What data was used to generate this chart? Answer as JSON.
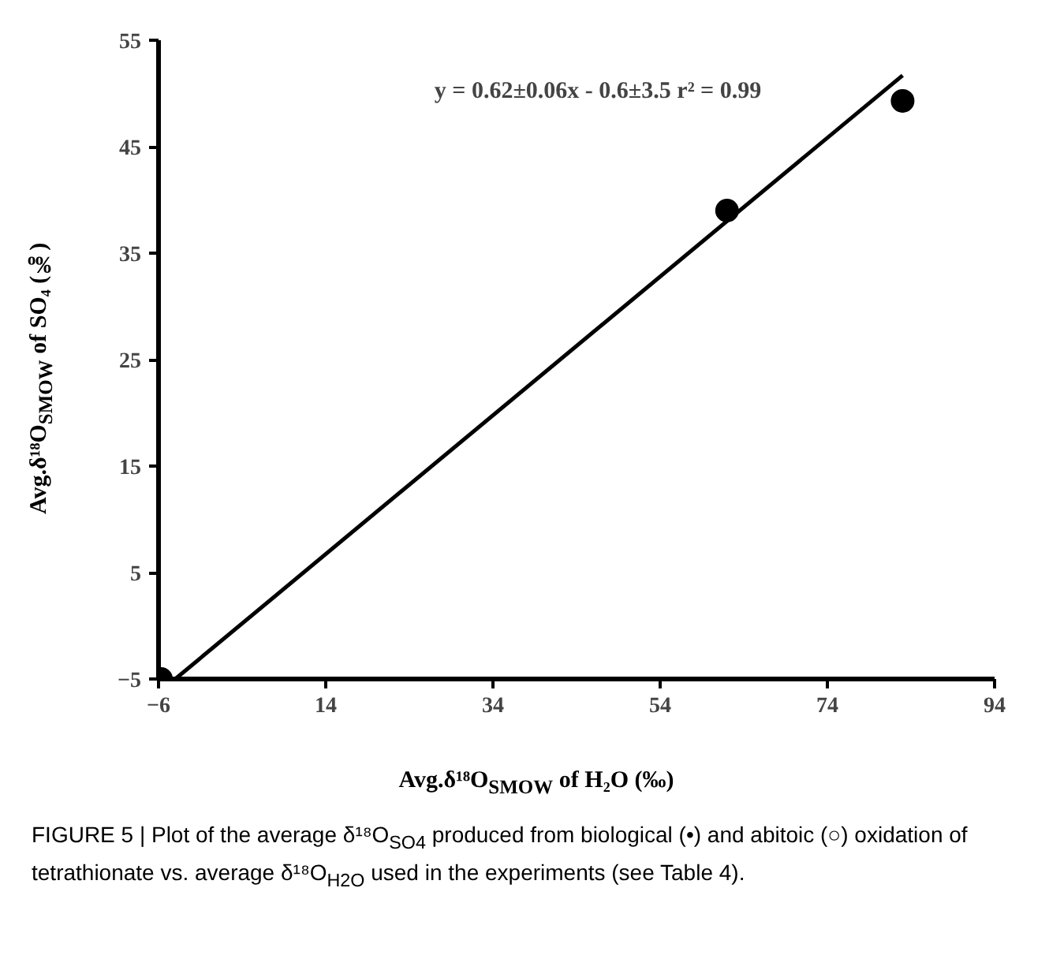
{
  "chart_data": {
    "type": "scatter",
    "xlabel": "Avg.δ¹⁸O$_{SMOW}$ of H₂O (‰)",
    "ylabel": "Avg.δ¹⁸O$_{SMOW}$ of SO₄ (‰)",
    "xlim": [
      -6,
      94
    ],
    "ylim": [
      -5,
      55
    ],
    "xticks": [
      -6,
      14,
      34,
      54,
      74,
      94
    ],
    "yticks": [
      -5,
      5,
      15,
      25,
      35,
      45,
      55
    ],
    "grid": false,
    "series": [
      {
        "color": "#000000",
        "x": [
          -5.7,
          62,
          83
        ],
        "values": [
          -5,
          39,
          49.3
        ],
        "marker": "circle"
      },
      {
        "type": "line",
        "color": "#000000",
        "x": [
          -4,
          83
        ],
        "values": [
          -5,
          51.7
        ],
        "line_style": "solid"
      }
    ],
    "annotations": [
      "y = 0.62±0.06x - 0.6±3.5   r² = 0.99",
      "FIGURE 5 | Plot of the average δ¹⁸O$_{SO4}$ produced from biological (•) and abitoic (○) oxidation of tetrathionate vs. average δ¹⁸O$_{H2O}$ used in the experiments (see Table 4)."
    ]
  }
}
